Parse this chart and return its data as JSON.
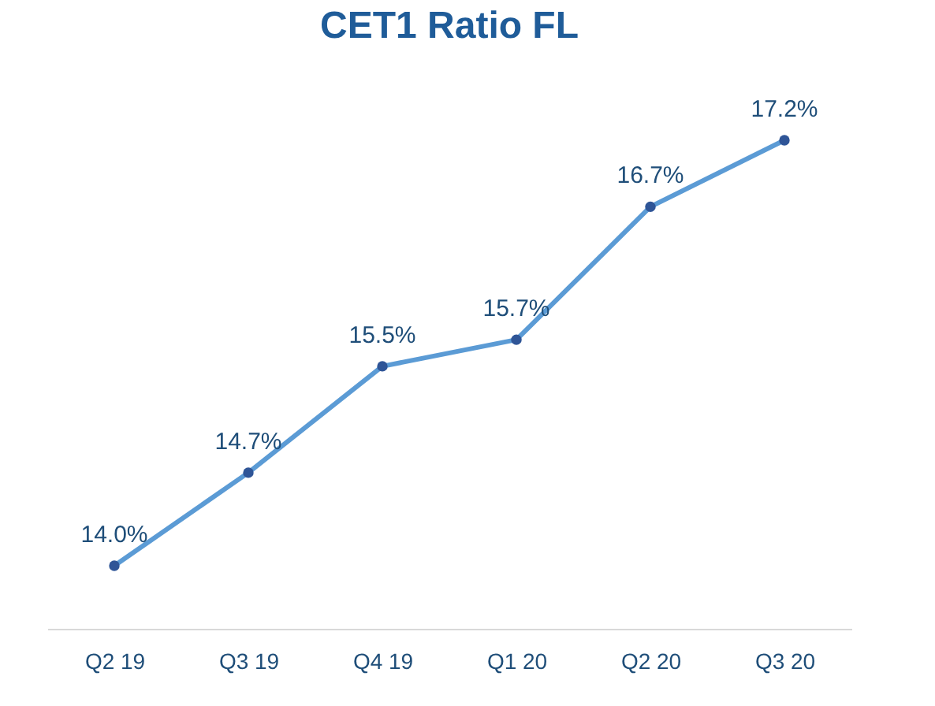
{
  "chart_data": {
    "type": "line",
    "title": "CET1 Ratio FL",
    "categories": [
      "Q2 19",
      "Q3 19",
      "Q4 19",
      "Q1 20",
      "Q2 20",
      "Q3 20"
    ],
    "series": [
      {
        "color": "#5b9bd5",
        "values": [
          14.0,
          14.7,
          15.5,
          15.7,
          16.7,
          17.2
        ],
        "value_labels": [
          "14.0%",
          "14.7%",
          "15.5%",
          "15.7%",
          "16.7%",
          "17.2%"
        ]
      }
    ],
    "marker": "circle",
    "grid": false,
    "tick_labels": "x"
  }
}
